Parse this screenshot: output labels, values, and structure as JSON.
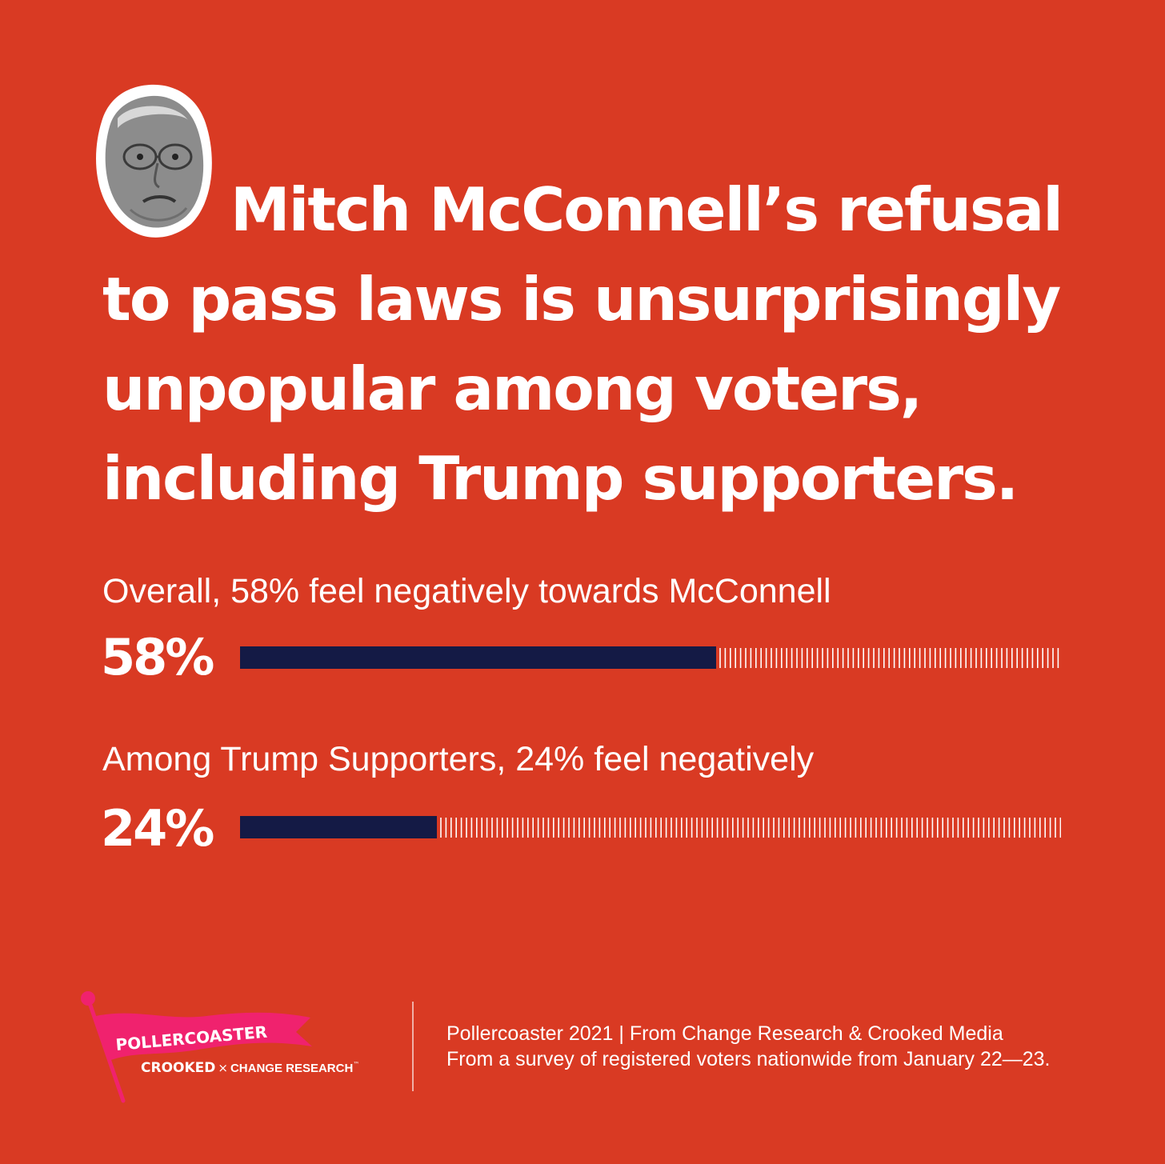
{
  "headline": "Mitch McConnell’s refusal to pass laws is unsurprisingly unpopular among voters, including Trump supporters.",
  "colors": {
    "background": "#d93a23",
    "bar_fill": "#141a45",
    "track_ticks": "#ffffff",
    "logo_flag": "#f0226e"
  },
  "chart_data": {
    "type": "bar",
    "orientation": "horizontal",
    "xlim": [
      0,
      100
    ],
    "bars": [
      {
        "label": "Overall, 58% feel negatively towards McConnell",
        "value_label": "58%",
        "value": 58
      },
      {
        "label": "Among Trump Supporters, 24% feel negatively",
        "value_label": "24%",
        "value": 24
      }
    ]
  },
  "logo": {
    "flag_text": "POLLERCOASTER",
    "crooked": "CROOKED",
    "x": "×",
    "change_research": "CHANGE RESEARCH",
    "tm": "™"
  },
  "source": {
    "line1": "Pollercoaster 2021 | From Change Research & Crooked Media",
    "line2": "From a survey of registered voters nationwide from January 22—23."
  }
}
